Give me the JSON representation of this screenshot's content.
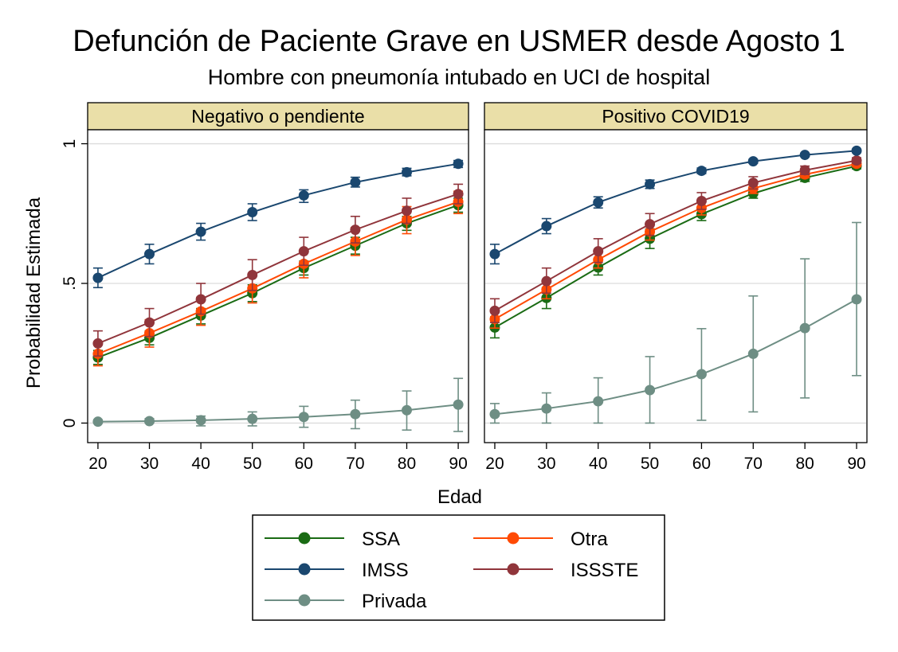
{
  "chart_data": {
    "type": "line",
    "title": "Defunción de Paciente Grave en USMER desde Agosto 1",
    "subtitle": "Hombre con pneumonía intubado en UCI de hospital",
    "xlabel": "Edad",
    "ylabel": "Probabilidad Estimada",
    "x": [
      20,
      30,
      40,
      50,
      60,
      70,
      80,
      90
    ],
    "x_tick_labels": [
      "20",
      "30",
      "40",
      "50",
      "60",
      "70",
      "80",
      "90"
    ],
    "y_ticks": [
      0,
      0.5,
      1
    ],
    "y_tick_labels": [
      "0",
      ".5",
      "1"
    ],
    "xlim": [
      18,
      92
    ],
    "ylim": [
      -0.07,
      1.05
    ],
    "grid": true,
    "legend_position": "bottom",
    "series_styles": {
      "SSA": {
        "color": "#1a6b14"
      },
      "Otra": {
        "color": "#ff4a04"
      },
      "IMSS": {
        "color": "#1a476f"
      },
      "ISSSTE": {
        "color": "#90353b"
      },
      "Privada": {
        "color": "#6e8e84"
      }
    },
    "legend": [
      [
        "SSA",
        "Otra"
      ],
      [
        "IMSS",
        "ISSSTE"
      ],
      [
        "Privada"
      ]
    ],
    "panels": [
      {
        "label": "Negativo o pendiente",
        "series": [
          {
            "name": "Privada",
            "values": [
              0.005,
              0.007,
              0.01,
              0.015,
              0.022,
              0.032,
              0.046,
              0.066
            ],
            "lower": [
              0.0,
              0.0,
              -0.01,
              -0.01,
              -0.015,
              -0.02,
              -0.025,
              -0.03
            ],
            "upper": [
              0.012,
              0.016,
              0.025,
              0.04,
              0.06,
              0.082,
              0.115,
              0.16
            ]
          },
          {
            "name": "SSA",
            "values": [
              0.235,
              0.305,
              0.385,
              0.465,
              0.555,
              0.635,
              0.715,
              0.78
            ],
            "lower": [
              0.21,
              0.28,
              0.355,
              0.435,
              0.53,
              0.605,
              0.69,
              0.755
            ],
            "upper": [
              0.26,
              0.33,
              0.41,
              0.495,
              0.58,
              0.665,
              0.74,
              0.805
            ]
          },
          {
            "name": "Otra",
            "values": [
              0.248,
              0.322,
              0.4,
              0.482,
              0.57,
              0.65,
              0.728,
              0.792
            ],
            "lower": [
              0.205,
              0.272,
              0.35,
              0.43,
              0.52,
              0.6,
              0.678,
              0.75
            ],
            "upper": [
              0.29,
              0.37,
              0.45,
              0.53,
              0.62,
              0.7,
              0.775,
              0.83
            ]
          },
          {
            "name": "ISSSTE",
            "values": [
              0.285,
              0.36,
              0.443,
              0.53,
              0.615,
              0.692,
              0.76,
              0.82
            ],
            "lower": [
              0.24,
              0.31,
              0.39,
              0.475,
              0.565,
              0.645,
              0.715,
              0.785
            ],
            "upper": [
              0.33,
              0.41,
              0.5,
              0.585,
              0.665,
              0.74,
              0.805,
              0.855
            ]
          },
          {
            "name": "IMSS",
            "values": [
              0.52,
              0.605,
              0.685,
              0.755,
              0.815,
              0.862,
              0.898,
              0.928
            ],
            "lower": [
              0.485,
              0.57,
              0.655,
              0.725,
              0.79,
              0.845,
              0.885,
              0.915
            ],
            "upper": [
              0.555,
              0.64,
              0.715,
              0.785,
              0.835,
              0.88,
              0.912,
              0.94
            ]
          }
        ]
      },
      {
        "label": "Positivo COVID19",
        "series": [
          {
            "name": "Privada",
            "values": [
              0.032,
              0.052,
              0.078,
              0.118,
              0.175,
              0.248,
              0.34,
              0.443
            ],
            "lower": [
              0.0,
              0.0,
              0.0,
              0.0,
              0.01,
              0.04,
              0.09,
              0.17
            ],
            "upper": [
              0.07,
              0.108,
              0.162,
              0.238,
              0.338,
              0.455,
              0.588,
              0.718
            ]
          },
          {
            "name": "SSA",
            "values": [
              0.342,
              0.448,
              0.557,
              0.66,
              0.748,
              0.822,
              0.878,
              0.92
            ],
            "lower": [
              0.305,
              0.41,
              0.53,
              0.625,
              0.725,
              0.805,
              0.865,
              0.91
            ],
            "upper": [
              0.38,
              0.485,
              0.585,
              0.695,
              0.77,
              0.838,
              0.89,
              0.93
            ]
          },
          {
            "name": "Otra",
            "values": [
              0.372,
              0.478,
              0.585,
              0.685,
              0.77,
              0.84,
              0.89,
              0.928
            ],
            "lower": [
              0.34,
              0.445,
              0.555,
              0.655,
              0.745,
              0.822,
              0.878,
              0.918
            ],
            "upper": [
              0.405,
              0.51,
              0.615,
              0.715,
              0.795,
              0.858,
              0.902,
              0.938
            ]
          },
          {
            "name": "ISSSTE",
            "values": [
              0.402,
              0.508,
              0.615,
              0.712,
              0.795,
              0.86,
              0.905,
              0.94
            ],
            "lower": [
              0.36,
              0.465,
              0.575,
              0.672,
              0.765,
              0.838,
              0.89,
              0.93
            ],
            "upper": [
              0.445,
              0.555,
              0.66,
              0.75,
              0.825,
              0.882,
              0.92,
              0.95
            ]
          },
          {
            "name": "IMSS",
            "values": [
              0.605,
              0.705,
              0.79,
              0.855,
              0.903,
              0.937,
              0.96,
              0.975
            ],
            "lower": [
              0.57,
              0.678,
              0.77,
              0.84,
              0.893,
              0.93,
              0.955,
              0.97
            ],
            "upper": [
              0.64,
              0.732,
              0.81,
              0.87,
              0.913,
              0.944,
              0.965,
              0.98
            ]
          }
        ]
      }
    ]
  }
}
